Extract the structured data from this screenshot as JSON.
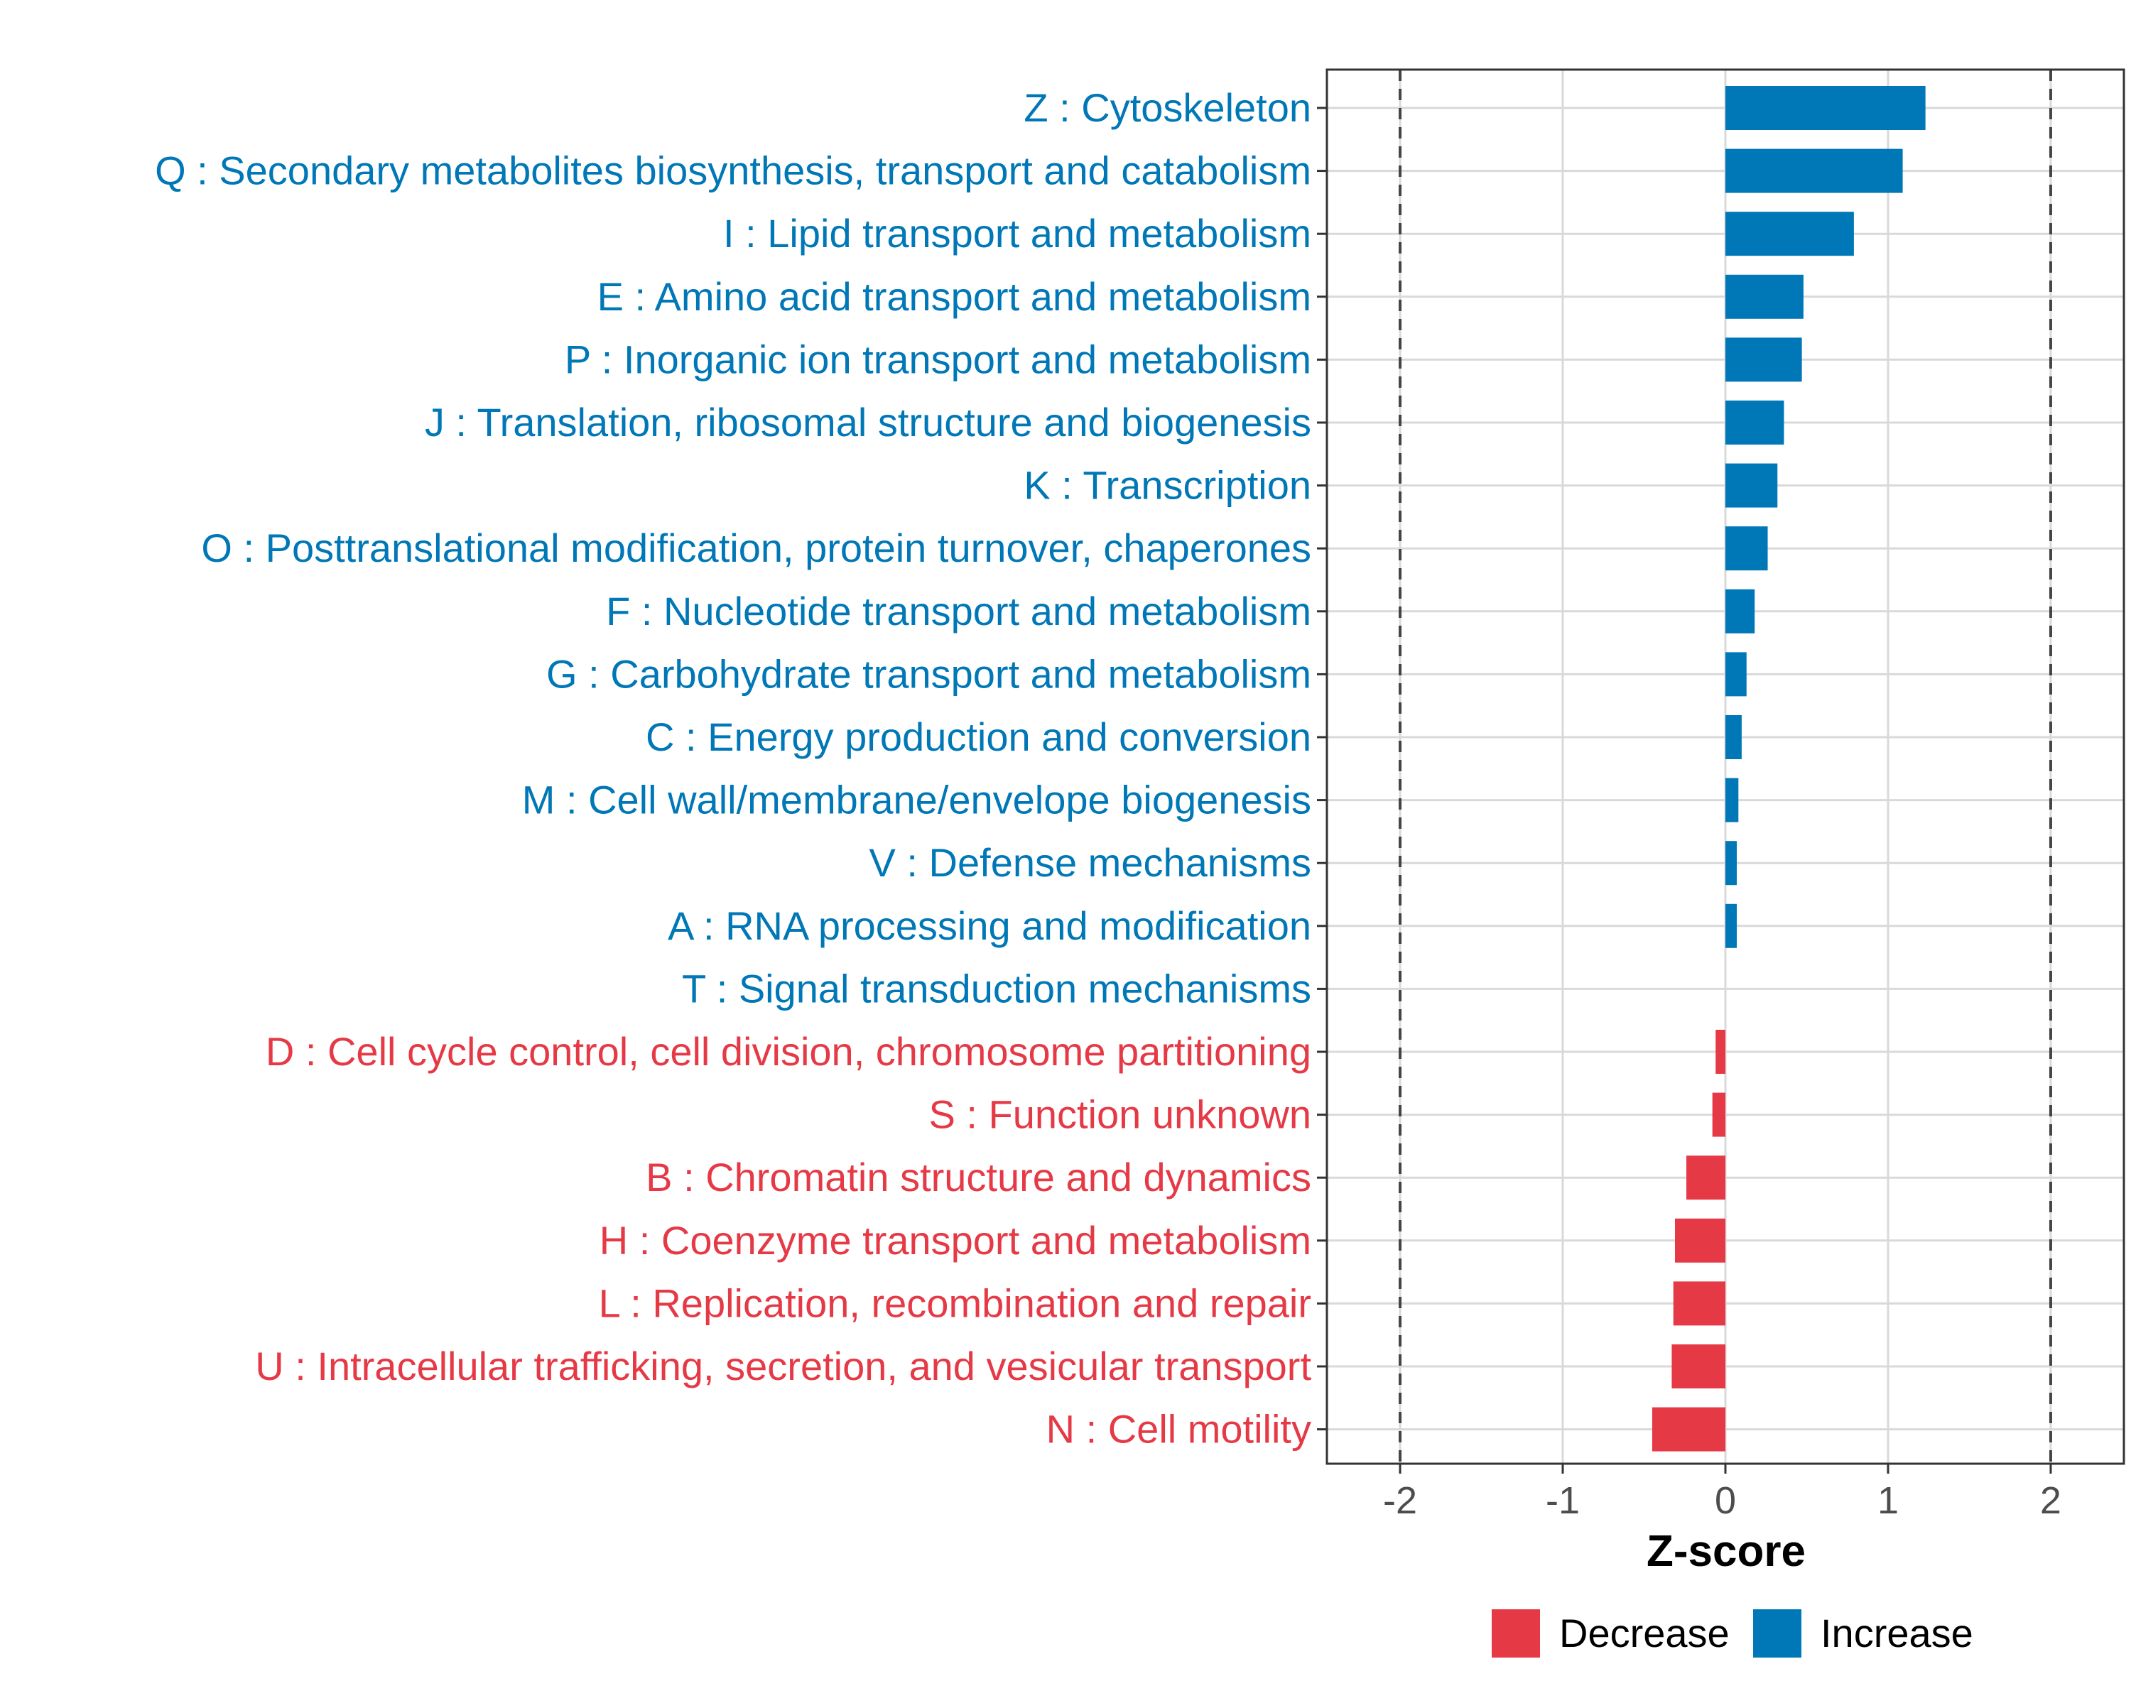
{
  "chart_data": {
    "type": "bar",
    "orientation": "horizontal",
    "xlabel": "Z-score",
    "xlim": [
      -2.45,
      2.45
    ],
    "xticks": [
      -2,
      -1,
      0,
      1,
      2
    ],
    "xtick_labels": [
      "-2",
      "-1",
      "0",
      "1",
      "2"
    ],
    "reference_lines": [
      -2,
      2
    ],
    "grid": true,
    "legend_position": "bottom",
    "legend": [
      {
        "label": "Decrease",
        "color": "#e63946"
      },
      {
        "label": "Increase",
        "color": "#0077b6"
      }
    ],
    "categories": [
      {
        "label": "Z : Cytoskeleton",
        "value": 1.23,
        "group": "Increase"
      },
      {
        "label": "Q : Secondary metabolites biosynthesis, transport and catabolism",
        "value": 1.09,
        "group": "Increase"
      },
      {
        "label": "I : Lipid transport and metabolism",
        "value": 0.79,
        "group": "Increase"
      },
      {
        "label": "E : Amino acid transport and metabolism",
        "value": 0.48,
        "group": "Increase"
      },
      {
        "label": "P : Inorganic ion transport and metabolism",
        "value": 0.47,
        "group": "Increase"
      },
      {
        "label": "J : Translation, ribosomal structure and biogenesis",
        "value": 0.36,
        "group": "Increase"
      },
      {
        "label": "K : Transcription",
        "value": 0.32,
        "group": "Increase"
      },
      {
        "label": "O : Posttranslational modification, protein turnover, chaperones",
        "value": 0.26,
        "group": "Increase"
      },
      {
        "label": "F : Nucleotide transport and metabolism",
        "value": 0.18,
        "group": "Increase"
      },
      {
        "label": "G : Carbohydrate transport and metabolism",
        "value": 0.13,
        "group": "Increase"
      },
      {
        "label": "C : Energy production and conversion",
        "value": 0.1,
        "group": "Increase"
      },
      {
        "label": "M : Cell wall/membrane/envelope biogenesis",
        "value": 0.08,
        "group": "Increase"
      },
      {
        "label": "V : Defense mechanisms",
        "value": 0.07,
        "group": "Increase"
      },
      {
        "label": "A : RNA processing and modification",
        "value": 0.07,
        "group": "Increase"
      },
      {
        "label": "T : Signal transduction mechanisms",
        "value": 0.0,
        "group": "Increase"
      },
      {
        "label": "D : Cell cycle control, cell division, chromosome partitioning",
        "value": -0.06,
        "group": "Decrease"
      },
      {
        "label": "S : Function unknown",
        "value": -0.08,
        "group": "Decrease"
      },
      {
        "label": "B : Chromatin structure and dynamics",
        "value": -0.24,
        "group": "Decrease"
      },
      {
        "label": "H : Coenzyme transport and metabolism",
        "value": -0.31,
        "group": "Decrease"
      },
      {
        "label": "L : Replication, recombination and repair",
        "value": -0.32,
        "group": "Decrease"
      },
      {
        "label": "U : Intracellular trafficking, secretion, and vesicular transport",
        "value": -0.33,
        "group": "Decrease"
      },
      {
        "label": "N : Cell motility",
        "value": -0.45,
        "group": "Decrease"
      }
    ]
  }
}
